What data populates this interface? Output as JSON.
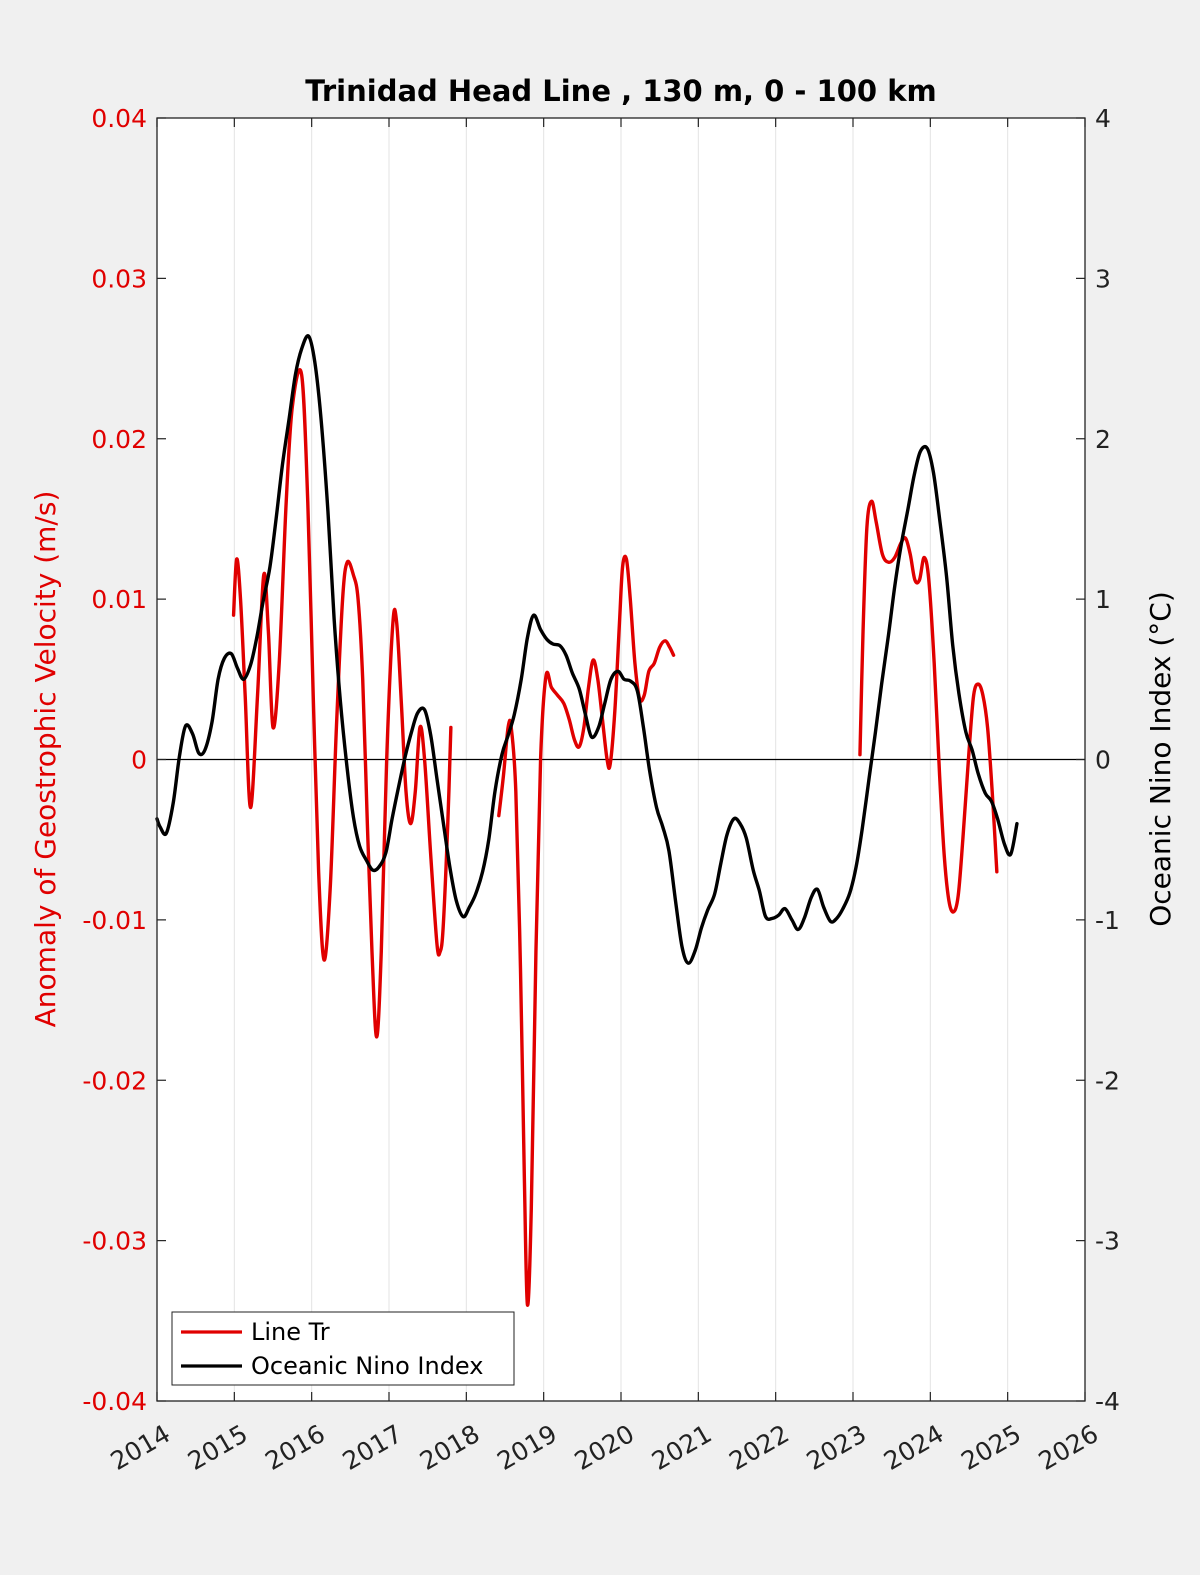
{
  "chart_data": {
    "type": "line",
    "title": "Trinidad Head Line , 130 m, 0 - 100 km",
    "ylabel_left": "Anomaly of Geostrophic Velocity (m/s)",
    "ylabel_right": "Oceanic Nino Index (°C)",
    "xlabel": "",
    "xlim": [
      2014,
      2026
    ],
    "ylim_left": [
      -0.04,
      0.04
    ],
    "ylim_right": [
      -4,
      4
    ],
    "x_ticks": [
      "2014",
      "2015",
      "2016",
      "2017",
      "2018",
      "2019",
      "2020",
      "2021",
      "2022",
      "2023",
      "2024",
      "2025",
      "2026"
    ],
    "y_left_ticks": [
      "0.04",
      "0.03",
      "0.02",
      "0.01",
      "0",
      "-0.01",
      "-0.02",
      "-0.03",
      "-0.04"
    ],
    "y_right_ticks": [
      "4",
      "3",
      "2",
      "1",
      "0",
      "-1",
      "-2",
      "-3",
      "-4"
    ],
    "grid": "vertical",
    "legend_position": "bottom-left",
    "colors": {
      "velocity": "#e00000",
      "oni": "#000000"
    },
    "series": [
      {
        "name": "Line Tr",
        "axis": "left",
        "color": "#e00000",
        "segments": [
          [
            [
              2014.99,
              0.009
            ],
            [
              2015.03,
              0.0125
            ],
            [
              2015.08,
              0.01
            ],
            [
              2015.14,
              0.004
            ],
            [
              2015.21,
              -0.003
            ],
            [
              2015.3,
              0.004
            ],
            [
              2015.38,
              0.0115
            ],
            [
              2015.44,
              0.008
            ],
            [
              2015.5,
              0.002
            ],
            [
              2015.58,
              0.006
            ],
            [
              2015.67,
              0.016
            ],
            [
              2015.75,
              0.022
            ],
            [
              2015.87,
              0.024
            ],
            [
              2015.95,
              0.016
            ],
            [
              2016.02,
              0.004
            ],
            [
              2016.09,
              -0.007
            ],
            [
              2016.16,
              -0.0125
            ],
            [
              2016.24,
              -0.008
            ],
            [
              2016.32,
              0.002
            ],
            [
              2016.4,
              0.01
            ],
            [
              2016.46,
              0.0123
            ],
            [
              2016.54,
              0.0115
            ],
            [
              2016.6,
              0.01
            ],
            [
              2016.66,
              0.005
            ],
            [
              2016.72,
              -0.004
            ],
            [
              2016.78,
              -0.012
            ],
            [
              2016.84,
              -0.0173
            ],
            [
              2016.9,
              -0.012
            ],
            [
              2016.97,
              0.0
            ],
            [
              2017.05,
              0.0085
            ],
            [
              2017.1,
              0.0085
            ],
            [
              2017.16,
              0.0035
            ],
            [
              2017.22,
              -0.002
            ],
            [
              2017.28,
              -0.004
            ],
            [
              2017.34,
              -0.002
            ],
            [
              2017.4,
              0.002
            ],
            [
              2017.46,
              0.0
            ],
            [
              2017.54,
              -0.006
            ],
            [
              2017.62,
              -0.0115
            ],
            [
              2017.66,
              -0.012
            ],
            [
              2017.7,
              -0.0105
            ],
            [
              2017.76,
              -0.004
            ],
            [
              2017.8,
              0.002
            ]
          ],
          [
            [
              2018.42,
              -0.0035
            ],
            [
              2018.48,
              -0.001
            ],
            [
              2018.54,
              0.002
            ],
            [
              2018.58,
              0.002
            ],
            [
              2018.64,
              -0.002
            ],
            [
              2018.7,
              -0.013
            ],
            [
              2018.75,
              -0.026
            ],
            [
              2018.79,
              -0.034
            ],
            [
              2018.84,
              -0.028
            ],
            [
              2018.9,
              -0.012
            ],
            [
              2018.96,
              0.0
            ],
            [
              2019.03,
              0.0052
            ],
            [
              2019.1,
              0.0045
            ],
            [
              2019.18,
              0.004
            ],
            [
              2019.26,
              0.0035
            ],
            [
              2019.33,
              0.0025
            ],
            [
              2019.4,
              0.0012
            ],
            [
              2019.46,
              0.0008
            ],
            [
              2019.52,
              0.002
            ],
            [
              2019.58,
              0.0045
            ],
            [
              2019.64,
              0.0062
            ],
            [
              2019.7,
              0.005
            ],
            [
              2019.76,
              0.0025
            ],
            [
              2019.82,
              0.0
            ],
            [
              2019.86,
              -0.0003
            ],
            [
              2019.92,
              0.003
            ],
            [
              2019.98,
              0.0085
            ],
            [
              2020.02,
              0.012
            ],
            [
              2020.07,
              0.0125
            ],
            [
              2020.12,
              0.01
            ],
            [
              2020.18,
              0.006
            ],
            [
              2020.24,
              0.0038
            ],
            [
              2020.3,
              0.004
            ],
            [
              2020.36,
              0.0055
            ],
            [
              2020.43,
              0.006
            ],
            [
              2020.5,
              0.007
            ],
            [
              2020.57,
              0.0074
            ],
            [
              2020.63,
              0.007
            ],
            [
              2020.68,
              0.0065
            ]
          ],
          [
            [
              2023.09,
              0.0003
            ],
            [
              2023.13,
              0.008
            ],
            [
              2023.18,
              0.0145
            ],
            [
              2023.24,
              0.0161
            ],
            [
              2023.3,
              0.0148
            ],
            [
              2023.38,
              0.0128
            ],
            [
              2023.46,
              0.0123
            ],
            [
              2023.54,
              0.0126
            ],
            [
              2023.62,
              0.0135
            ],
            [
              2023.68,
              0.0138
            ],
            [
              2023.74,
              0.0128
            ],
            [
              2023.8,
              0.0112
            ],
            [
              2023.86,
              0.0112
            ],
            [
              2023.92,
              0.0126
            ],
            [
              2023.98,
              0.0112
            ],
            [
              2024.05,
              0.006
            ],
            [
              2024.12,
              -0.001
            ],
            [
              2024.18,
              -0.006
            ],
            [
              2024.24,
              -0.0088
            ],
            [
              2024.3,
              -0.0095
            ],
            [
              2024.36,
              -0.0085
            ],
            [
              2024.42,
              -0.005
            ],
            [
              2024.5,
              0.0005
            ],
            [
              2024.56,
              0.004
            ],
            [
              2024.62,
              0.0047
            ],
            [
              2024.68,
              0.004
            ],
            [
              2024.74,
              0.002
            ],
            [
              2024.8,
              -0.002
            ],
            [
              2024.86,
              -0.007
            ]
          ]
        ]
      },
      {
        "name": "Oceanic Nino Index",
        "axis": "right",
        "color": "#000000",
        "segments": [
          [
            [
              2014.0,
              -0.37
            ],
            [
              2014.04,
              -0.42
            ],
            [
              2014.12,
              -0.46
            ],
            [
              2014.21,
              -0.27
            ],
            [
              2014.29,
              0.02
            ],
            [
              2014.37,
              0.21
            ],
            [
              2014.46,
              0.16
            ],
            [
              2014.54,
              0.04
            ],
            [
              2014.62,
              0.06
            ],
            [
              2014.71,
              0.23
            ],
            [
              2014.79,
              0.5
            ],
            [
              2014.87,
              0.63
            ],
            [
              2014.96,
              0.66
            ],
            [
              2015.04,
              0.57
            ],
            [
              2015.12,
              0.5
            ],
            [
              2015.21,
              0.59
            ],
            [
              2015.29,
              0.76
            ],
            [
              2015.37,
              0.98
            ],
            [
              2015.46,
              1.2
            ],
            [
              2015.54,
              1.5
            ],
            [
              2015.62,
              1.83
            ],
            [
              2015.71,
              2.13
            ],
            [
              2015.79,
              2.4
            ],
            [
              2015.87,
              2.56
            ],
            [
              2015.96,
              2.64
            ],
            [
              2016.04,
              2.48
            ],
            [
              2016.12,
              2.13
            ],
            [
              2016.21,
              1.55
            ],
            [
              2016.29,
              0.88
            ],
            [
              2016.37,
              0.37
            ],
            [
              2016.46,
              -0.06
            ],
            [
              2016.54,
              -0.36
            ],
            [
              2016.62,
              -0.54
            ],
            [
              2016.71,
              -0.63
            ],
            [
              2016.79,
              -0.69
            ],
            [
              2016.87,
              -0.67
            ],
            [
              2016.96,
              -0.58
            ],
            [
              2017.04,
              -0.37
            ],
            [
              2017.12,
              -0.18
            ],
            [
              2017.21,
              0.02
            ],
            [
              2017.29,
              0.17
            ],
            [
              2017.37,
              0.29
            ],
            [
              2017.46,
              0.31
            ],
            [
              2017.54,
              0.15
            ],
            [
              2017.62,
              -0.12
            ],
            [
              2017.71,
              -0.42
            ],
            [
              2017.79,
              -0.68
            ],
            [
              2017.87,
              -0.88
            ],
            [
              2017.96,
              -0.98
            ],
            [
              2018.04,
              -0.92
            ],
            [
              2018.12,
              -0.84
            ],
            [
              2018.21,
              -0.7
            ],
            [
              2018.29,
              -0.5
            ],
            [
              2018.37,
              -0.2
            ],
            [
              2018.46,
              0.03
            ],
            [
              2018.54,
              0.15
            ],
            [
              2018.62,
              0.28
            ],
            [
              2018.71,
              0.5
            ],
            [
              2018.79,
              0.76
            ],
            [
              2018.87,
              0.9
            ],
            [
              2018.96,
              0.81
            ],
            [
              2019.04,
              0.75
            ],
            [
              2019.12,
              0.72
            ],
            [
              2019.21,
              0.71
            ],
            [
              2019.29,
              0.65
            ],
            [
              2019.37,
              0.54
            ],
            [
              2019.46,
              0.44
            ],
            [
              2019.54,
              0.28
            ],
            [
              2019.62,
              0.14
            ],
            [
              2019.71,
              0.2
            ],
            [
              2019.79,
              0.35
            ],
            [
              2019.87,
              0.5
            ],
            [
              2019.96,
              0.55
            ],
            [
              2020.04,
              0.5
            ],
            [
              2020.12,
              0.49
            ],
            [
              2020.21,
              0.43
            ],
            [
              2020.29,
              0.2
            ],
            [
              2020.37,
              -0.07
            ],
            [
              2020.46,
              -0.3
            ],
            [
              2020.54,
              -0.42
            ],
            [
              2020.62,
              -0.57
            ],
            [
              2020.71,
              -0.9
            ],
            [
              2020.79,
              -1.17
            ],
            [
              2020.87,
              -1.27
            ],
            [
              2020.96,
              -1.19
            ],
            [
              2021.04,
              -1.05
            ],
            [
              2021.12,
              -0.94
            ],
            [
              2021.21,
              -0.84
            ],
            [
              2021.29,
              -0.65
            ],
            [
              2021.37,
              -0.47
            ],
            [
              2021.46,
              -0.37
            ],
            [
              2021.54,
              -0.4
            ],
            [
              2021.62,
              -0.49
            ],
            [
              2021.71,
              -0.69
            ],
            [
              2021.79,
              -0.82
            ],
            [
              2021.87,
              -0.98
            ],
            [
              2021.96,
              -0.99
            ],
            [
              2022.04,
              -0.97
            ],
            [
              2022.12,
              -0.93
            ],
            [
              2022.21,
              -1.0
            ],
            [
              2022.29,
              -1.06
            ],
            [
              2022.37,
              -0.99
            ],
            [
              2022.46,
              -0.86
            ],
            [
              2022.54,
              -0.81
            ],
            [
              2022.62,
              -0.92
            ],
            [
              2022.71,
              -1.01
            ],
            [
              2022.79,
              -0.99
            ],
            [
              2022.87,
              -0.93
            ],
            [
              2022.96,
              -0.83
            ],
            [
              2023.04,
              -0.67
            ],
            [
              2023.12,
              -0.43
            ],
            [
              2023.21,
              -0.11
            ],
            [
              2023.29,
              0.17
            ],
            [
              2023.37,
              0.47
            ],
            [
              2023.46,
              0.78
            ],
            [
              2023.54,
              1.08
            ],
            [
              2023.62,
              1.33
            ],
            [
              2023.71,
              1.56
            ],
            [
              2023.79,
              1.77
            ],
            [
              2023.87,
              1.92
            ],
            [
              2023.96,
              1.94
            ],
            [
              2024.04,
              1.79
            ],
            [
              2024.12,
              1.5
            ],
            [
              2024.21,
              1.14
            ],
            [
              2024.29,
              0.71
            ],
            [
              2024.37,
              0.41
            ],
            [
              2024.46,
              0.17
            ],
            [
              2024.54,
              0.06
            ],
            [
              2024.62,
              -0.09
            ],
            [
              2024.71,
              -0.21
            ],
            [
              2024.79,
              -0.26
            ],
            [
              2024.87,
              -0.37
            ],
            [
              2024.96,
              -0.53
            ],
            [
              2025.04,
              -0.59
            ],
            [
              2025.12,
              -0.4
            ]
          ]
        ]
      }
    ]
  }
}
